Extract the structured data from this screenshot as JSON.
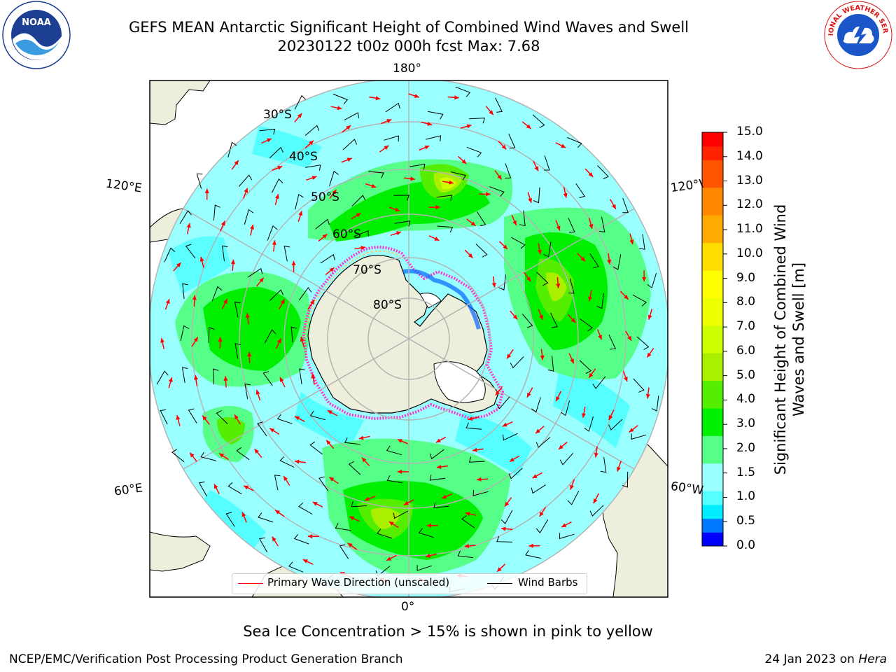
{
  "title": {
    "line1": "GEFS MEAN Antarctic Significant Height of Combined Wind Waves and Swell",
    "line2": "20230122 t00z 000h fcst   Max: 7.68"
  },
  "map": {
    "projection": "south-polar-stereographic",
    "longitude_labels": {
      "top": "180°",
      "bottom": "0°",
      "left_upper": "120°E",
      "left_lower": "60°E",
      "right_upper": "120°W",
      "right_lower": "60°W"
    },
    "latitude_labels": [
      "30°S",
      "40°S",
      "50°S",
      "60°S",
      "70°S",
      "80°S"
    ],
    "colors": {
      "land": "#eeeedc",
      "coast": "#000000",
      "grid": "#b4b4b4",
      "ice_edge": "#ff33cc",
      "wave_arrow": "#ff0000",
      "wind_barb": "#000000"
    }
  },
  "colorbar": {
    "label": "Significant Height of Combined Wind Waves and Swell [m]",
    "ticks": [
      "15.0",
      "14.0",
      "13.0",
      "12.0",
      "11.0",
      "10.0",
      "9.0",
      "8.0",
      "7.0",
      "6.0",
      "5.0",
      "4.0",
      "3.0",
      "2.0",
      "1.5",
      "1.0",
      "0.5",
      "0.0"
    ],
    "levels": [
      0.0,
      0.5,
      1.0,
      1.5,
      2.0,
      2.5,
      3.0,
      3.5,
      4.0,
      4.5,
      5.0,
      5.5,
      6.0,
      6.5,
      7.0,
      7.5,
      8.0,
      8.5,
      9.0,
      9.5,
      10.0,
      10.5,
      11.0,
      11.5,
      12.0,
      12.5,
      13.0,
      13.5,
      14.0,
      14.5,
      15.0
    ],
    "colors": [
      "#0000ff",
      "#0078ff",
      "#00eeff",
      "#55ffff",
      "#99ffff",
      "#99ffff",
      "#55ff88",
      "#55ff88",
      "#00ee00",
      "#00ee00",
      "#55ee00",
      "#55ee00",
      "#aaee00",
      "#aaee00",
      "#ccff00",
      "#ccff00",
      "#eeff00",
      "#eeff00",
      "#ffff00",
      "#ffff00",
      "#ffdd00",
      "#ffdd00",
      "#ffaa00",
      "#ffaa00",
      "#ff8800",
      "#ff8800",
      "#ff5500",
      "#ff5500",
      "#ff2200",
      "#ff0000"
    ]
  },
  "legend": {
    "primary_wave": "Primary Wave Direction (unscaled)",
    "wind_barbs": "Wind Barbs"
  },
  "note": "Sea Ice Concentration > 15% is shown in pink to yellow",
  "footer": {
    "left": "NCEP/EMC/Verification Post Processing Product Generation Branch",
    "date": "24 Jan 2023 on ",
    "machine": "Hera"
  },
  "logos": {
    "noaa_text": "NOAA",
    "nws_text": "NATIONAL WEATHER SERVICE"
  }
}
